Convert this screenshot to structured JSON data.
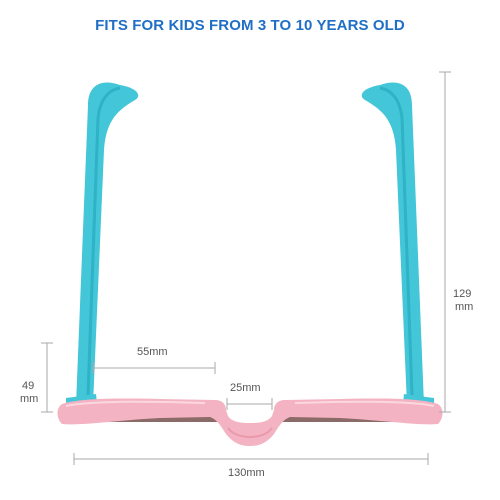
{
  "headline": "FITS FOR KIDS FROM 3 TO 10 YEARS OLD",
  "product": {
    "description": "",
    "frame_color": "#f4b3c2",
    "temple_color": "#43c6d8",
    "lens_color": "#8a6b68"
  },
  "dimensions": {
    "lens_width": "55mm",
    "bridge_width": "25mm",
    "frame_width": "130mm",
    "temple_length_value": "129",
    "temple_length_unit": "mm",
    "lens_height_value": "49",
    "lens_height_unit": "mm"
  }
}
